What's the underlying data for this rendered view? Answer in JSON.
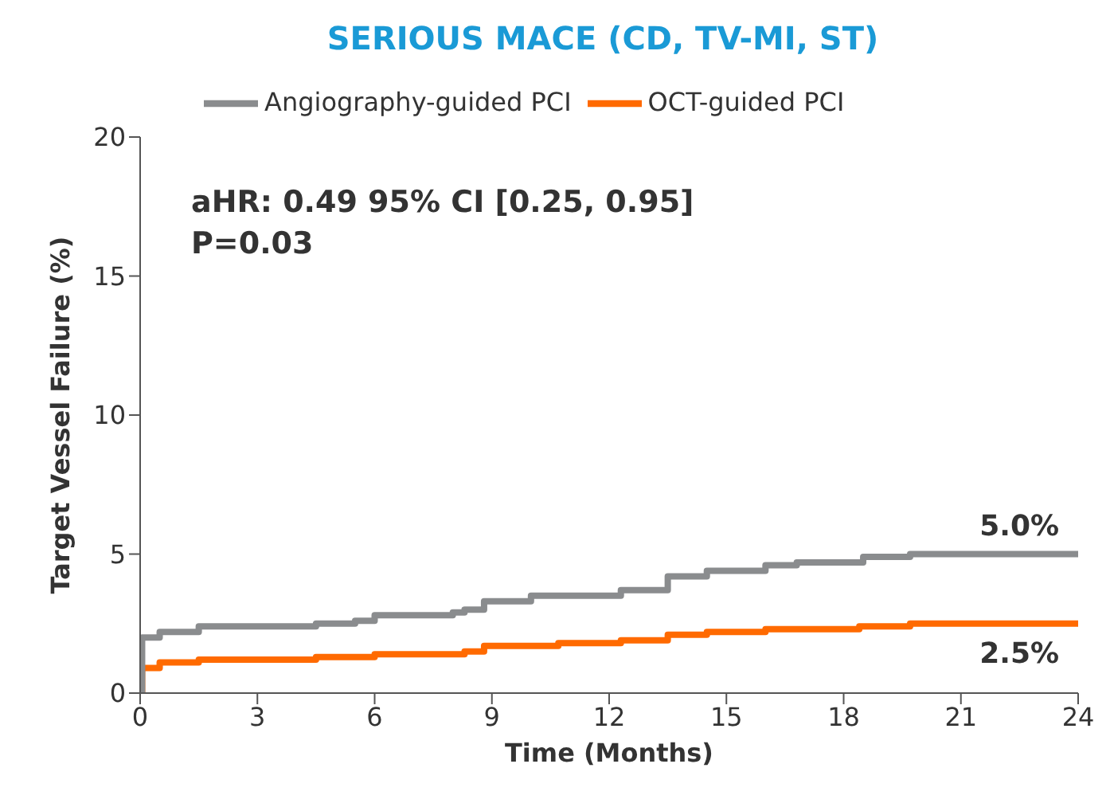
{
  "chart_data": {
    "type": "step",
    "title": "SERIOUS MACE (CD, TV-MI, ST)",
    "xlabel": "Time (Months)",
    "ylabel": "Target Vessel Failure (%)",
    "xlim": [
      0,
      24
    ],
    "xticks": [
      0,
      3,
      6,
      9,
      12,
      15,
      18,
      21,
      24
    ],
    "ylim": [
      0,
      20
    ],
    "yticks": [
      0,
      5,
      10,
      15,
      20
    ],
    "grid": false,
    "legend": "top",
    "marker": "none",
    "line_style": "solid",
    "series": [
      {
        "name": "OCT-guided PCI",
        "color": "#ff6a00",
        "x": [
          0,
          0.05,
          0.5,
          1.5,
          4.5,
          6,
          8.3,
          8.8,
          10.7,
          12.3,
          13.5,
          14.5,
          16,
          18.4,
          19.7,
          24
        ],
        "values": [
          0,
          0.9,
          1.1,
          1.2,
          1.3,
          1.4,
          1.5,
          1.7,
          1.8,
          1.9,
          2.1,
          2.2,
          2.3,
          2.4,
          2.5,
          2.5
        ]
      },
      {
        "name": "Angiography-guided PCI",
        "color": "#8a8c8e",
        "x": [
          0,
          0.05,
          0.5,
          1.5,
          4.5,
          5.5,
          6,
          8,
          8.3,
          8.8,
          10,
          12.3,
          13.5,
          14.5,
          16,
          16.8,
          18.5,
          19.7,
          24
        ],
        "values": [
          0,
          2.0,
          2.2,
          2.4,
          2.5,
          2.6,
          2.8,
          2.9,
          3.0,
          3.3,
          3.5,
          3.7,
          4.2,
          4.4,
          4.6,
          4.7,
          4.9,
          5.0,
          5.0
        ]
      }
    ],
    "annotations": [
      "aHR: 0.49 95% CI [0.25, 0.95]",
      "P=0.03",
      {
        "text": "5.0%",
        "x": 24,
        "y": 5.0
      },
      {
        "text": "2.5%",
        "x": 24,
        "y": 2.5
      }
    ]
  }
}
